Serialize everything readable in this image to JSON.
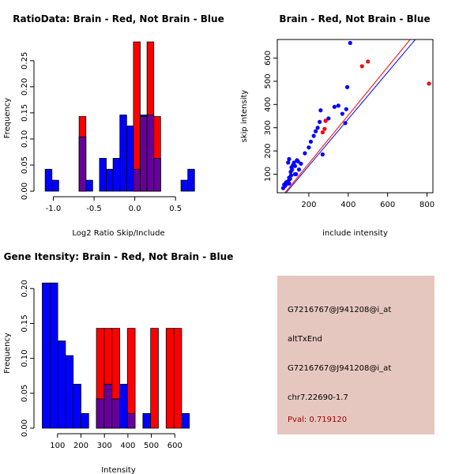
{
  "colors": {
    "red": "#ff0000",
    "blue": "#0000ff",
    "purple": "#660099",
    "panel": "#e6c7bf",
    "pval": "#990000"
  },
  "chart_data": [
    {
      "type": "bar",
      "title": "RatioData: Brain - Red, Not Brain - Blue",
      "xlabel": "Log2 Ratio Skip/Include",
      "ylabel": "Frequency",
      "xlim": [
        -1.15,
        0.75
      ],
      "ylim": [
        0,
        0.28
      ],
      "xticks": [
        -1.0,
        -0.5,
        0.0,
        0.5
      ],
      "xtick_labels": [
        "-1.0",
        "-0.5",
        "0.0",
        "0.5"
      ],
      "yticks": [
        0,
        0.05,
        0.1,
        0.15,
        0.2,
        0.25
      ],
      "ytick_labels": [
        "0.00",
        "0.05",
        "0.10",
        "0.15",
        "0.20",
        "0.25"
      ],
      "bin_width": 0.0833,
      "series": [
        {
          "name": "Not Brain",
          "color": "blue",
          "bins": [
            {
              "x0": -1.1,
              "y": 0.042
            },
            {
              "x0": -1.0167,
              "y": 0.021
            },
            {
              "x0": -0.6833,
              "y": 0.104
            },
            {
              "x0": -0.6,
              "y": 0.021
            },
            {
              "x0": -0.4333,
              "y": 0.063
            },
            {
              "x0": -0.35,
              "y": 0.042
            },
            {
              "x0": -0.2667,
              "y": 0.063
            },
            {
              "x0": -0.1833,
              "y": 0.146
            },
            {
              "x0": -0.1,
              "y": 0.125
            },
            {
              "x0": -0.0167,
              "y": 0.042
            },
            {
              "x0": 0.0667,
              "y": 0.146
            },
            {
              "x0": 0.15,
              "y": 0.146
            },
            {
              "x0": 0.2333,
              "y": 0.063
            },
            {
              "x0": 0.5667,
              "y": 0.021
            },
            {
              "x0": 0.65,
              "y": 0.042
            }
          ]
        },
        {
          "name": "Brain",
          "color": "red",
          "bins": [
            {
              "x0": -0.6833,
              "y": 0.143
            },
            {
              "x0": -0.0167,
              "y": 0.286
            },
            {
              "x0": 0.0667,
              "y": 0.143
            },
            {
              "x0": 0.15,
              "y": 0.286
            },
            {
              "x0": 0.2333,
              "y": 0.143
            }
          ]
        }
      ]
    },
    {
      "type": "scatter",
      "title": "Brain - Red, Not Brain - Blue",
      "xlabel": "include intensity",
      "ylabel": "skip intensity",
      "xlim": [
        40,
        830
      ],
      "ylim": [
        20,
        680
      ],
      "xticks": [
        200,
        400,
        600,
        800
      ],
      "xtick_labels": [
        "200",
        "400",
        "600",
        "800"
      ],
      "yticks": [
        100,
        200,
        300,
        400,
        500,
        600
      ],
      "ytick_labels": [
        "100",
        "200",
        "300",
        "400",
        "500",
        "600"
      ],
      "series": [
        {
          "name": "Not Brain",
          "color": "blue",
          "points": [
            [
              70,
              40
            ],
            [
              75,
              55
            ],
            [
              80,
              50
            ],
            [
              85,
              65
            ],
            [
              90,
              60
            ],
            [
              95,
              70
            ],
            [
              100,
              85
            ],
            [
              105,
              80
            ],
            [
              110,
              95
            ],
            [
              100,
              60
            ],
            [
              108,
              110
            ],
            [
              112,
              130
            ],
            [
              115,
              120
            ],
            [
              120,
              140
            ],
            [
              125,
              150
            ],
            [
              130,
              135
            ],
            [
              135,
              100
            ],
            [
              140,
              160
            ],
            [
              145,
              155
            ],
            [
              150,
              120
            ],
            [
              100,
              165
            ],
            [
              160,
              145
            ],
            [
              180,
              190
            ],
            [
              200,
              215
            ],
            [
              210,
              240
            ],
            [
              225,
              265
            ],
            [
              235,
              285
            ],
            [
              245,
              300
            ],
            [
              255,
              325
            ],
            [
              260,
              375
            ],
            [
              270,
              185
            ],
            [
              285,
              330
            ],
            [
              300,
              340
            ],
            [
              330,
              390
            ],
            [
              350,
              395
            ],
            [
              370,
              360
            ],
            [
              385,
              320
            ],
            [
              390,
              380
            ],
            [
              395,
              475
            ],
            [
              410,
              665
            ],
            [
              95,
              150
            ],
            [
              130,
              100
            ]
          ]
        },
        {
          "name": "Brain",
          "color": "red",
          "points": [
            [
              270,
              280
            ],
            [
              280,
              295
            ],
            [
              285,
              330
            ],
            [
              470,
              565
            ],
            [
              500,
              585
            ],
            [
              810,
              490
            ]
          ]
        }
      ],
      "fit_lines": [
        {
          "name": "Brain",
          "color": "red",
          "x": [
            40,
            830
          ],
          "y": [
            -20,
            800
          ]
        },
        {
          "name": "Not Brain",
          "color": "blue",
          "x": [
            40,
            830
          ],
          "y": [
            -25,
            770
          ]
        }
      ]
    },
    {
      "type": "bar",
      "title": "Gene Itensity: Brain - Red, Not Brain - Blue",
      "xlabel": "Intensity",
      "ylabel": "Frequency",
      "xlim": [
        30,
        690
      ],
      "ylim": [
        0,
        0.215
      ],
      "xticks": [
        100,
        200,
        300,
        400,
        500,
        600
      ],
      "xtick_labels": [
        "100",
        "200",
        "300",
        "400",
        "500",
        "600"
      ],
      "yticks": [
        0,
        0.05,
        0.1,
        0.15,
        0.2
      ],
      "ytick_labels": [
        "0.00",
        "0.05",
        "0.10",
        "0.15",
        "0.20"
      ],
      "bin_width": 33,
      "series": [
        {
          "name": "Not Brain",
          "color": "blue",
          "bins": [
            {
              "x0": 35,
              "y": 0.208
            },
            {
              "x0": 68,
              "y": 0.208
            },
            {
              "x0": 101,
              "y": 0.125
            },
            {
              "x0": 134,
              "y": 0.104
            },
            {
              "x0": 167,
              "y": 0.063
            },
            {
              "x0": 200,
              "y": 0.021
            },
            {
              "x0": 266,
              "y": 0.042
            },
            {
              "x0": 299,
              "y": 0.063
            },
            {
              "x0": 332,
              "y": 0.042
            },
            {
              "x0": 365,
              "y": 0.063
            },
            {
              "x0": 398,
              "y": 0.021
            },
            {
              "x0": 464,
              "y": 0.021
            },
            {
              "x0": 629,
              "y": 0.021
            }
          ]
        },
        {
          "name": "Brain",
          "color": "red",
          "bins": [
            {
              "x0": 266,
              "y": 0.143
            },
            {
              "x0": 299,
              "y": 0.143
            },
            {
              "x0": 332,
              "y": 0.143
            },
            {
              "x0": 398,
              "y": 0.143
            },
            {
              "x0": 497,
              "y": 0.143
            },
            {
              "x0": 563,
              "y": 0.143
            },
            {
              "x0": 596,
              "y": 0.143
            }
          ]
        }
      ]
    }
  ],
  "info_panel": {
    "probe_id": "G7216767@J941208@i_at",
    "event_type": "altTxEnd",
    "probe_id_2": "G7216767@J941208@i_at",
    "location": "chr7.22690-1.7",
    "pval": "Pval: 0.719120"
  }
}
